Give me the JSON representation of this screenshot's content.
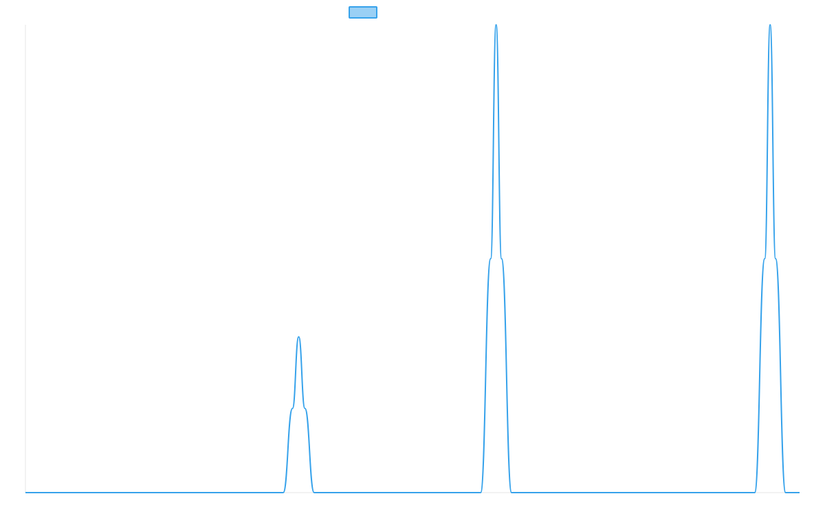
{
  "chart_data": {
    "type": "line",
    "title": "",
    "xlabel": "",
    "ylabel": "",
    "xlim": [
      0,
      100
    ],
    "ylim": [
      0,
      1
    ],
    "grid": false,
    "legend": {
      "placement": "top-center",
      "show_label": false
    },
    "series": [
      {
        "name": "",
        "color": "#36a2eb",
        "fill_color": "#9ad0f5",
        "points": [
          [
            0,
            0
          ],
          [
            33.3,
            0
          ],
          [
            34.5,
            0.18
          ],
          [
            35.3,
            0.333
          ],
          [
            36.1,
            0.18
          ],
          [
            37.3,
            0
          ],
          [
            58.8,
            0
          ],
          [
            60.1,
            0.5
          ],
          [
            60.8,
            1.0
          ],
          [
            61.5,
            0.5
          ],
          [
            62.8,
            0
          ],
          [
            94.2,
            0
          ],
          [
            95.5,
            0.5
          ],
          [
            96.2,
            1.0
          ],
          [
            96.9,
            0.5
          ],
          [
            98.2,
            0
          ],
          [
            100,
            0
          ]
        ]
      }
    ]
  }
}
